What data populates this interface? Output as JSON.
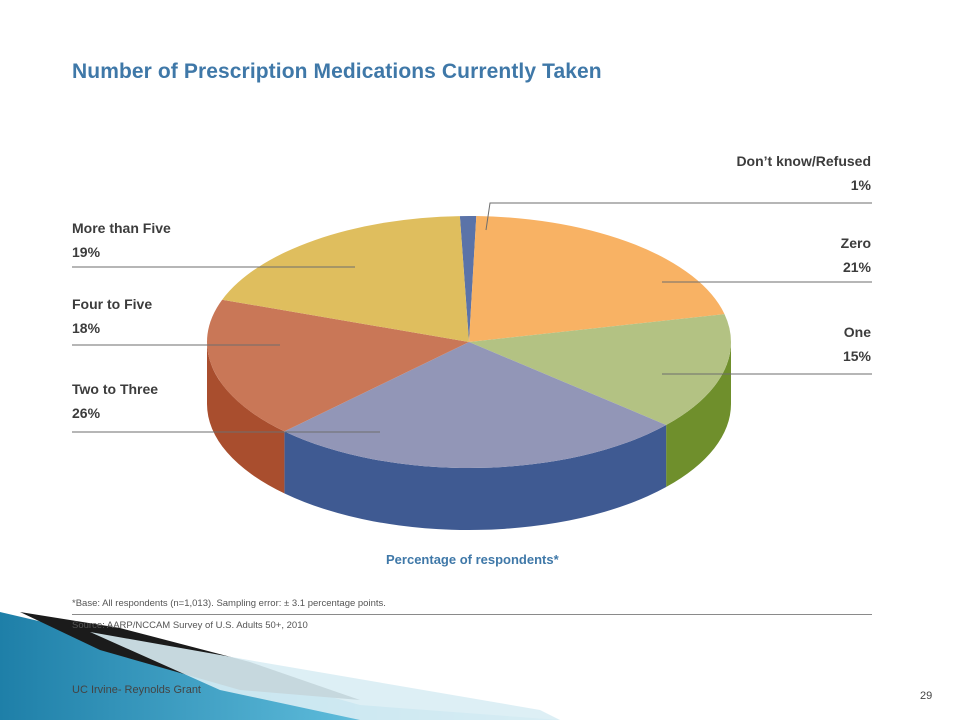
{
  "chart_data": {
    "type": "pie",
    "title": "Number of Prescription Medications Currently Taken",
    "xlabel": "Percentage of respondents*",
    "slices": [
      {
        "label": "Don’t know/Refused",
        "value": 1,
        "value_label": "1%",
        "color": "#5b73a8",
        "side": "#3d5590"
      },
      {
        "label": "Zero",
        "value": 21,
        "value_label": "21%",
        "color": "#f8b264",
        "side": "#d98b3a"
      },
      {
        "label": "One",
        "value": 15,
        "value_label": "15%",
        "color": "#b3c283",
        "side": "#6f8f2c"
      },
      {
        "label": "Two to Three",
        "value": 26,
        "value_label": "26%",
        "color": "#9296b7",
        "side": "#3f5a92"
      },
      {
        "label": "Four to Five",
        "value": 18,
        "value_label": "18%",
        "color": "#c97757",
        "side": "#a94e2e"
      },
      {
        "label": "More than Five",
        "value": 19,
        "value_label": "19%",
        "color": "#dfbe5e",
        "side": "#c9a244"
      }
    ]
  },
  "notes": {
    "base": "*Base: All respondents (n=1,013). Sampling error: ± 3.1 percentage points.",
    "source": "Source: AARP/NCCAM Survey of U.S. Adults 50+, 2010"
  },
  "footer": {
    "text": "UC Irvine- Reynolds Grant",
    "page": "29"
  }
}
